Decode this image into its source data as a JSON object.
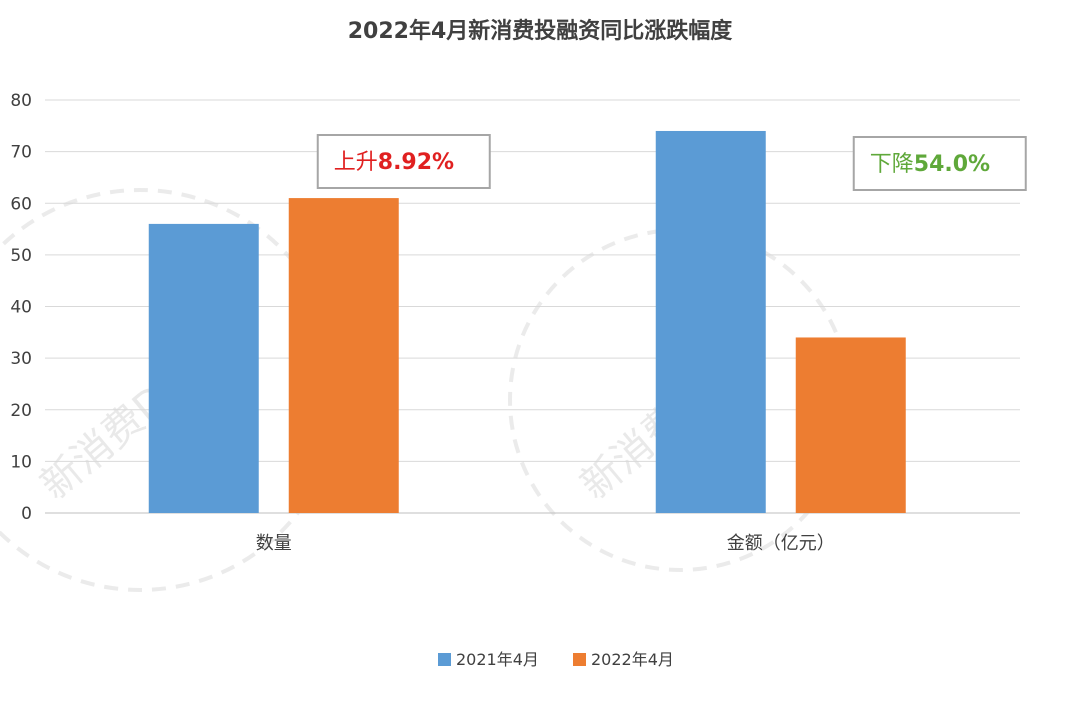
{
  "chart_data": {
    "type": "bar",
    "title": "2022年4月新消费投融资同比涨跌幅度",
    "categories": [
      "数量",
      "金额（亿元）"
    ],
    "series": [
      {
        "name": "2021年4月",
        "color": "#5b9bd5",
        "values": [
          56,
          74
        ]
      },
      {
        "name": "2022年4月",
        "color": "#ed7d31",
        "values": [
          61,
          34
        ]
      }
    ],
    "ylim": [
      0,
      80
    ],
    "yticks": [
      0,
      10,
      20,
      30,
      40,
      50,
      60,
      70,
      80
    ],
    "grid": true,
    "legend": "bottom",
    "annotations": [
      {
        "category": "数量",
        "prefix": "上升",
        "value": "8.92%",
        "color": "#e02020"
      },
      {
        "category": "金额（亿元）",
        "prefix": "下降",
        "value": "54.0%",
        "color": "#5fa83a"
      }
    ]
  },
  "watermark": {
    "text": "新消费Daily"
  }
}
